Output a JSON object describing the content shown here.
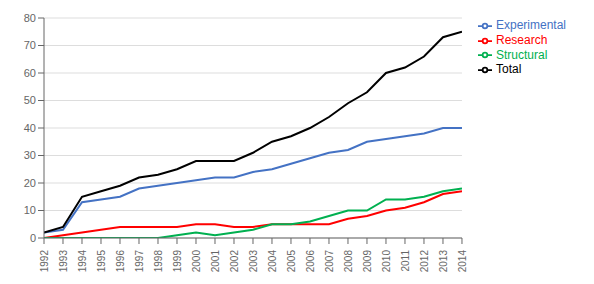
{
  "chart_data": {
    "type": "line",
    "x": [
      1992,
      1993,
      1994,
      1995,
      1996,
      1997,
      1998,
      1999,
      2000,
      2001,
      2002,
      2003,
      2004,
      2005,
      2006,
      2007,
      2008,
      2009,
      2010,
      2011,
      2012,
      2013,
      2014
    ],
    "series": [
      {
        "name": "Experimental",
        "color": "#4472C4",
        "values": [
          2,
          3,
          13,
          14,
          15,
          18,
          19,
          20,
          21,
          22,
          22,
          24,
          25,
          27,
          29,
          31,
          32,
          35,
          36,
          37,
          38,
          40,
          40
        ]
      },
      {
        "name": "Research",
        "color": "#FF0000",
        "values": [
          0,
          1,
          2,
          3,
          4,
          4,
          4,
          4,
          5,
          5,
          4,
          4,
          5,
          5,
          5,
          5,
          7,
          8,
          10,
          11,
          13,
          16,
          17
        ]
      },
      {
        "name": "Structural",
        "color": "#00B050",
        "values": [
          0,
          0,
          0,
          0,
          0,
          0,
          0,
          1,
          2,
          1,
          2,
          3,
          5,
          5,
          6,
          8,
          10,
          10,
          14,
          14,
          15,
          17,
          18
        ]
      },
      {
        "name": "Total",
        "color": "#000000",
        "values": [
          2,
          4,
          15,
          17,
          19,
          22,
          23,
          25,
          28,
          28,
          28,
          31,
          35,
          37,
          40,
          44,
          49,
          53,
          60,
          62,
          66,
          73,
          75
        ]
      }
    ],
    "xlim": [
      1992,
      2014
    ],
    "xticks": [
      1992,
      1993,
      1994,
      1995,
      1996,
      1997,
      1998,
      1999,
      2000,
      2001,
      2002,
      2003,
      2004,
      2005,
      2006,
      2007,
      2008,
      2009,
      2010,
      2011,
      2012,
      2013,
      2014
    ],
    "ylim": [
      0,
      80
    ],
    "yticks": [
      0,
      10,
      20,
      30,
      40,
      50,
      60,
      70,
      80
    ],
    "grid": true,
    "legend": "right"
  }
}
